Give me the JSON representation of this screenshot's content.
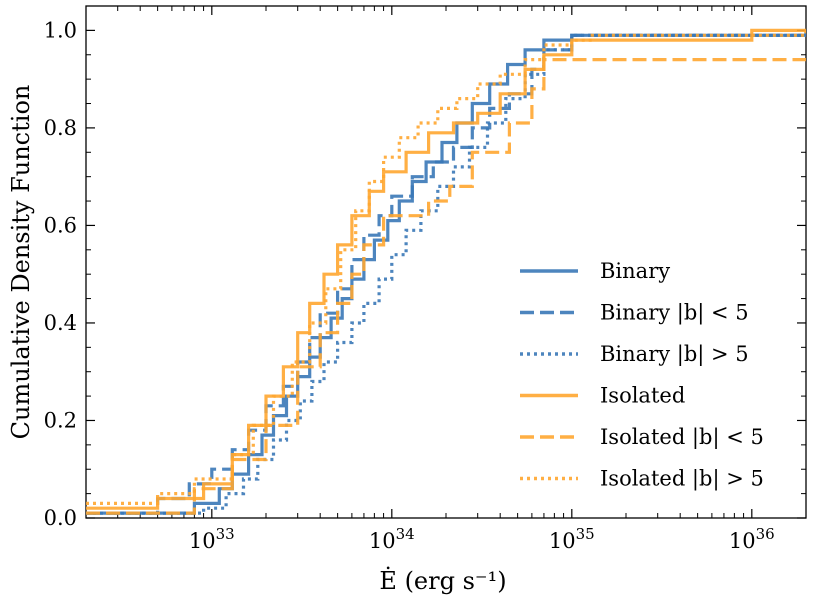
{
  "chart_data": {
    "type": "step-cdf",
    "title": "",
    "xlabel": "Ė (erg s⁻¹)",
    "ylabel": "Cumulative Density Function",
    "xscale": "log",
    "xlim": [
      2e+32,
      2e+36
    ],
    "ylim": [
      0.0,
      1.05
    ],
    "x_tick_labels": [
      {
        "value": 1e+33,
        "base": "10",
        "exp": "33"
      },
      {
        "value": 1e+34,
        "base": "10",
        "exp": "34"
      },
      {
        "value": 1e+35,
        "base": "10",
        "exp": "35"
      },
      {
        "value": 1e+36,
        "base": "10",
        "exp": "36"
      }
    ],
    "y_ticks": [
      0.0,
      0.2,
      0.4,
      0.6,
      0.8,
      1.0
    ],
    "y_tick_labels": [
      "0.0",
      "0.2",
      "0.4",
      "0.6",
      "0.8",
      "1.0"
    ],
    "legend_position": "lower-right",
    "colors": {
      "binary": "#3a78b7",
      "isolated": "#ffa630"
    },
    "series": [
      {
        "name": "Binary",
        "color": "#3a78b7",
        "dash": "solid",
        "x": [
          2e+32,
          8e+32,
          1.1e+33,
          1.3e+33,
          1.6e+33,
          1.9e+33,
          2.2e+33,
          2.6e+33,
          3e+33,
          3.5e+33,
          4e+33,
          4.6e+33,
          5.3e+33,
          6e+33,
          7e+33,
          8e+33,
          9.5e+33,
          1.1e+34,
          1.3e+34,
          1.55e+34,
          1.9e+34,
          2.3e+34,
          2.8e+34,
          3.5e+34,
          4.4e+34,
          5.5e+34,
          7e+34,
          1e+35,
          2e+36
        ],
        "y": [
          0.01,
          0.03,
          0.06,
          0.09,
          0.13,
          0.17,
          0.21,
          0.25,
          0.29,
          0.33,
          0.37,
          0.41,
          0.45,
          0.49,
          0.53,
          0.57,
          0.61,
          0.65,
          0.69,
          0.73,
          0.77,
          0.81,
          0.85,
          0.89,
          0.93,
          0.96,
          0.98,
          0.99,
          1.0
        ]
      },
      {
        "name": "Binary |b| < 5",
        "color": "#3a78b7",
        "dash": "dashed",
        "x": [
          2e+32,
          5e+32,
          7.5e+32,
          1e+33,
          1.3e+33,
          1.6e+33,
          2e+33,
          2.5e+33,
          3e+33,
          3.5e+33,
          4e+33,
          5e+33,
          6e+33,
          7e+33,
          8.5e+33,
          1e+34,
          1.3e+34,
          1.7e+34,
          2.2e+34,
          2.8e+34,
          3.5e+34,
          4.5e+34,
          6e+34,
          7e+34,
          1e+35,
          2e+36
        ],
        "y": [
          0.01,
          0.04,
          0.07,
          0.1,
          0.14,
          0.18,
          0.23,
          0.27,
          0.32,
          0.37,
          0.42,
          0.47,
          0.53,
          0.58,
          0.62,
          0.66,
          0.7,
          0.73,
          0.76,
          0.8,
          0.84,
          0.87,
          0.92,
          0.96,
          0.99,
          1.0
        ]
      },
      {
        "name": "Binary |b| > 5",
        "color": "#3a78b7",
        "dash": "dotted",
        "x": [
          2e+32,
          9e+32,
          1.2e+33,
          1.5e+33,
          1.8e+33,
          2.2e+33,
          2.6e+33,
          3.1e+33,
          3.6e+33,
          4.2e+33,
          5e+33,
          6e+33,
          7e+33,
          8.5e+33,
          1e+34,
          1.2e+34,
          1.45e+34,
          1.8e+34,
          2.2e+34,
          2.7e+34,
          3.4e+34,
          4.3e+34,
          5.5e+34,
          7e+34,
          1e+35,
          2e+36
        ],
        "y": [
          0.01,
          0.02,
          0.05,
          0.08,
          0.12,
          0.16,
          0.2,
          0.24,
          0.28,
          0.32,
          0.36,
          0.4,
          0.44,
          0.49,
          0.54,
          0.59,
          0.63,
          0.68,
          0.72,
          0.76,
          0.81,
          0.86,
          0.91,
          0.96,
          0.99,
          1.0
        ]
      },
      {
        "name": "Isolated",
        "color": "#ffa630",
        "dash": "solid",
        "x": [
          2e+32,
          5e+32,
          9e+32,
          1.3e+33,
          1.6e+33,
          2e+33,
          2.5e+33,
          3e+33,
          3.5e+33,
          4.2e+33,
          5e+33,
          6e+33,
          7.5e+33,
          9e+33,
          1.2e+34,
          1.6e+34,
          2.2e+34,
          3e+34,
          4e+34,
          5.5e+34,
          7e+34,
          1e+35,
          1e+36,
          2e+36
        ],
        "y": [
          0.02,
          0.04,
          0.07,
          0.13,
          0.19,
          0.25,
          0.31,
          0.38,
          0.44,
          0.5,
          0.56,
          0.62,
          0.67,
          0.71,
          0.75,
          0.79,
          0.81,
          0.83,
          0.87,
          0.92,
          0.95,
          0.98,
          1.0,
          1.0
        ]
      },
      {
        "name": "Isolated |b| < 5",
        "color": "#ffa630",
        "dash": "dashed",
        "x": [
          2e+32,
          8e+32,
          1.3e+33,
          2e+33,
          3e+33,
          4e+33,
          5e+33,
          6e+33,
          7e+33,
          9e+33,
          1.2e+34,
          1.6e+34,
          2.1e+34,
          2.8e+34,
          3.5e+34,
          4.5e+34,
          6e+34,
          7e+34,
          1e+36,
          2e+36
        ],
        "y": [
          0.01,
          0.06,
          0.12,
          0.19,
          0.31,
          0.38,
          0.44,
          0.5,
          0.56,
          0.62,
          0.62,
          0.65,
          0.68,
          0.75,
          0.75,
          0.81,
          0.88,
          0.94,
          0.94,
          0.94
        ]
      },
      {
        "name": "Isolated |b| > 5",
        "color": "#ffa630",
        "dash": "dotted",
        "x": [
          2e+32,
          5e+32,
          8e+32,
          1.3e+33,
          1.7e+33,
          2.2e+33,
          2.8e+33,
          3.5e+33,
          4.3e+33,
          5.2e+33,
          6.3e+33,
          7.5e+33,
          9e+33,
          1.1e+34,
          1.4e+34,
          1.8e+34,
          2.3e+34,
          3e+34,
          4e+34,
          5.5e+34,
          7e+34,
          1e+35,
          1.3e+35,
          2e+36
        ],
        "y": [
          0.03,
          0.05,
          0.08,
          0.13,
          0.19,
          0.25,
          0.32,
          0.4,
          0.47,
          0.55,
          0.63,
          0.69,
          0.74,
          0.78,
          0.81,
          0.84,
          0.86,
          0.89,
          0.91,
          0.94,
          0.97,
          0.98,
          0.99,
          1.0
        ]
      }
    ]
  }
}
